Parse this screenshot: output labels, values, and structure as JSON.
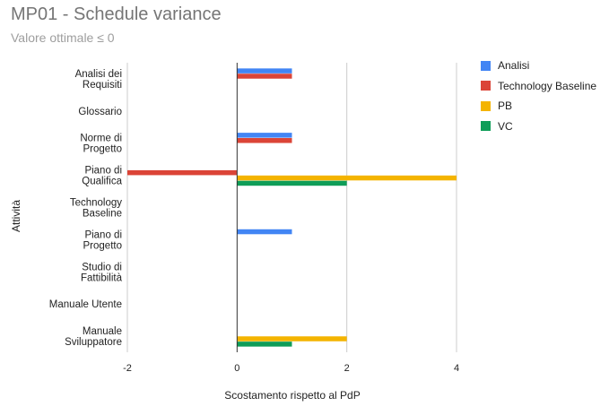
{
  "title": "MP01 - Schedule variance",
  "subtitle": "Valore ottimale ≤ 0",
  "chart_data": {
    "type": "bar",
    "orientation": "horizontal",
    "categories": [
      [
        "Analisi dei",
        "Requisiti"
      ],
      [
        "Glossario"
      ],
      [
        "Norme di",
        "Progetto"
      ],
      [
        "Piano di",
        "Qualifica"
      ],
      [
        "Technology",
        "Baseline"
      ],
      [
        "Piano di",
        "Progetto"
      ],
      [
        "Studio di",
        "Fattibilità"
      ],
      [
        "Manuale Utente"
      ],
      [
        "Manuale",
        "Sviluppatore"
      ]
    ],
    "series": [
      {
        "name": "Analisi",
        "color": "#4285f4",
        "values": [
          1,
          0,
          1,
          0,
          0,
          1,
          0,
          0,
          0
        ]
      },
      {
        "name": "Technology Baseline",
        "color": "#db4437",
        "values": [
          1,
          0,
          1,
          -2,
          0,
          0,
          0,
          0,
          0
        ]
      },
      {
        "name": "PB",
        "color": "#f4b400",
        "values": [
          0,
          0,
          0,
          4,
          0,
          0,
          0,
          0,
          2
        ]
      },
      {
        "name": "VC",
        "color": "#0f9d58",
        "values": [
          0,
          0,
          0,
          2,
          0,
          0,
          0,
          0,
          1
        ]
      }
    ],
    "xlabel": "Scostamento rispetto al PdP",
    "ylabel": "Attività",
    "xlim": [
      -2,
      4
    ],
    "xticks": [
      "-2",
      "0",
      "2",
      "4"
    ],
    "grid": true,
    "legend_position": "right"
  }
}
